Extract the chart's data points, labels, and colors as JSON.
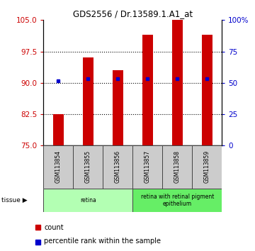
{
  "title": "GDS2556 / Dr.13589.1.A1_at",
  "samples": [
    "GSM113854",
    "GSM113855",
    "GSM113856",
    "GSM113857",
    "GSM113858",
    "GSM113859"
  ],
  "counts": [
    82.5,
    96.0,
    93.0,
    101.5,
    105.0,
    101.5
  ],
  "percentiles": [
    90.5,
    91.0,
    91.0,
    91.0,
    91.0,
    91.0
  ],
  "ymin": 75,
  "ymax": 105,
  "yticks_left": [
    75,
    82.5,
    90,
    97.5,
    105
  ],
  "yticks_right_vals": [
    75,
    82.5,
    90,
    97.5,
    105
  ],
  "yticks_right_labels": [
    "0",
    "25",
    "50",
    "75",
    "100%"
  ],
  "bar_color": "#cc0000",
  "marker_color": "#0000cc",
  "tissue_groups": [
    {
      "label": "retina",
      "start": 0,
      "end": 3,
      "color": "#b3ffb3"
    },
    {
      "label": "retina with retinal pigment\nepithelium",
      "start": 3,
      "end": 6,
      "color": "#66ee66"
    }
  ],
  "left_color": "#cc0000",
  "right_color": "#0000cc",
  "bar_width": 0.35
}
